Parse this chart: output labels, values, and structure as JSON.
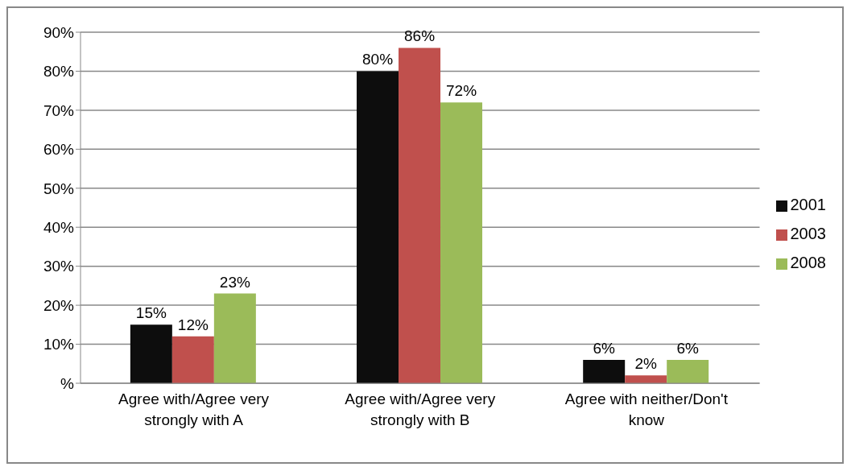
{
  "chart_data": {
    "type": "bar",
    "categories": [
      "Agree with/Agree very strongly with A",
      "Agree with/Agree very strongly with B",
      "Agree with neither/Don't know"
    ],
    "series": [
      {
        "name": "2001",
        "color": "#0d0d0d",
        "values": [
          15,
          80,
          6
        ],
        "value_labels": [
          "15%",
          "80%",
          "6%"
        ]
      },
      {
        "name": "2003",
        "color": "#c0504d",
        "values": [
          12,
          86,
          2
        ],
        "value_labels": [
          "12%",
          "86%",
          "2%"
        ]
      },
      {
        "name": "2008",
        "color": "#9bbb59",
        "values": [
          23,
          72,
          6
        ],
        "value_labels": [
          "23%",
          "72%",
          "6%"
        ]
      }
    ],
    "ylim": [
      0,
      90
    ],
    "yticks": [
      {
        "value": 0,
        "label": "%"
      },
      {
        "value": 10,
        "label": "10%"
      },
      {
        "value": 20,
        "label": "20%"
      },
      {
        "value": 30,
        "label": "30%"
      },
      {
        "value": 40,
        "label": "40%"
      },
      {
        "value": 50,
        "label": "50%"
      },
      {
        "value": 60,
        "label": "60%"
      },
      {
        "value": 70,
        "label": "70%"
      },
      {
        "value": 80,
        "label": "80%"
      },
      {
        "value": 90,
        "label": "90%"
      }
    ],
    "grid": "y",
    "legend": "right"
  }
}
